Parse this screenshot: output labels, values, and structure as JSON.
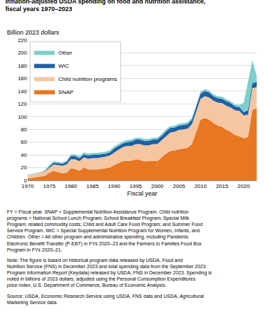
{
  "chart_data": {
    "type": "area",
    "stacked": true,
    "title": "Inflation-adjusted USDA spending on food and nutrition assistance,\nfiscal years 1970–2023",
    "ylabel": "Billion 2023 dollars",
    "xlabel": "Fiscal year",
    "annotations": [
      "FY = Fiscal year. SNAP = Supplemental Nutrition Assistance Program. Child nutrition programs = National School Lunch Program; School Breakfast Program; Special Milk Program; related commodity costs; Child and Adult Care Food Program; and Summer Food Service Program. WIC = Special Supplemental Nutrition Program for Women, Infants, and Children. Other = All other program and administrative spending, including Pandemic Electronic Benefit Transfer (P-EBT) in FYs 2020–23 and the Farmers to Families Food Box Program in FYs 2020–21.",
      "Note: The figure is based on historical program data released by USDA, Food and Nutrition Service (FNS) in December 2023 and total spending data from the September 2023 Program Information Report (Keydata) released by USDA, FNS in December 2023. Spending is noted in billions of 2023 dollars, adjusted using the Personal Consumption Expenditures price index, U.S. Department of Commerce, Bureau of Economic Analysis.",
      "Source: USDA, Economic Research Service using USDA, FNS data and USDA, Agricultural Marketing Service data."
    ],
    "x": [
      1970,
      1971,
      1972,
      1973,
      1974,
      1975,
      1976,
      1977,
      1978,
      1979,
      1980,
      1981,
      1982,
      1983,
      1984,
      1985,
      1986,
      1987,
      1988,
      1989,
      1990,
      1991,
      1992,
      1993,
      1994,
      1995,
      1996,
      1997,
      1998,
      1999,
      2000,
      2001,
      2002,
      2003,
      2004,
      2005,
      2006,
      2007,
      2008,
      2009,
      2010,
      2011,
      2012,
      2013,
      2014,
      2015,
      2016,
      2017,
      2018,
      2019,
      2020,
      2021,
      2022,
      2023
    ],
    "series": [
      {
        "name": "SNAP",
        "color": "#E87722",
        "values": [
          3,
          4,
          5,
          6,
          7,
          12,
          15,
          13,
          11,
          12,
          19,
          18,
          15,
          20,
          17,
          17,
          17,
          18,
          19,
          20,
          24,
          27,
          30,
          31,
          31,
          33,
          32,
          30,
          30,
          31,
          30,
          36,
          42,
          46,
          47,
          49,
          50,
          51,
          57,
          76,
          95,
          98,
          95,
          90,
          86,
          84,
          79,
          76,
          71,
          69,
          66,
          68,
          111,
          113
        ]
      },
      {
        "name": "Child nutrition programs",
        "color": "#F5C6A0",
        "values": [
          5,
          5,
          6,
          6,
          7,
          8,
          10,
          11,
          12,
          13,
          14,
          15,
          15,
          16,
          17,
          18,
          18,
          18,
          18,
          19,
          20,
          21,
          22,
          23,
          23,
          24,
          25,
          25,
          25,
          26,
          27,
          27,
          28,
          29,
          29,
          30,
          30,
          30,
          31,
          32,
          33,
          34,
          35,
          35,
          36,
          37,
          38,
          38,
          39,
          40,
          36,
          35,
          34,
          33
        ]
      },
      {
        "name": "WIC",
        "color": "#1F5FA6",
        "values": [
          0,
          0,
          0,
          0,
          1,
          2,
          3,
          3,
          3,
          4,
          5,
          5,
          5,
          5,
          5,
          5,
          5,
          5,
          5,
          5,
          6,
          6,
          6,
          6,
          7,
          7,
          7,
          7,
          7,
          7,
          7,
          7,
          7,
          7,
          7,
          7,
          7,
          7,
          7,
          7,
          8,
          8,
          8,
          7,
          7,
          7,
          7,
          7,
          6,
          6,
          5,
          7,
          8,
          8
        ]
      },
      {
        "name": "Other",
        "color": "#7ECECA",
        "values": [
          1,
          1,
          1,
          1,
          1,
          2,
          2,
          2,
          2,
          2,
          3,
          3,
          3,
          3,
          3,
          3,
          3,
          3,
          3,
          3,
          3,
          3,
          3,
          3,
          3,
          3,
          3,
          3,
          3,
          3,
          3,
          3,
          3,
          3,
          3,
          3,
          3,
          3,
          3,
          3,
          3,
          3,
          3,
          3,
          3,
          3,
          3,
          3,
          3,
          3,
          15,
          45,
          35,
          10
        ]
      }
    ],
    "xlim": [
      1970,
      2023
    ],
    "xticks": [
      1970,
      1975,
      1980,
      1985,
      1990,
      1995,
      2000,
      2005,
      2010,
      2015,
      2020
    ],
    "ylim": [
      0,
      220
    ],
    "yticks": [
      0,
      20,
      40,
      60,
      80,
      100,
      120,
      140,
      160,
      180,
      200,
      220
    ],
    "grid": true,
    "legend": "upper left"
  }
}
